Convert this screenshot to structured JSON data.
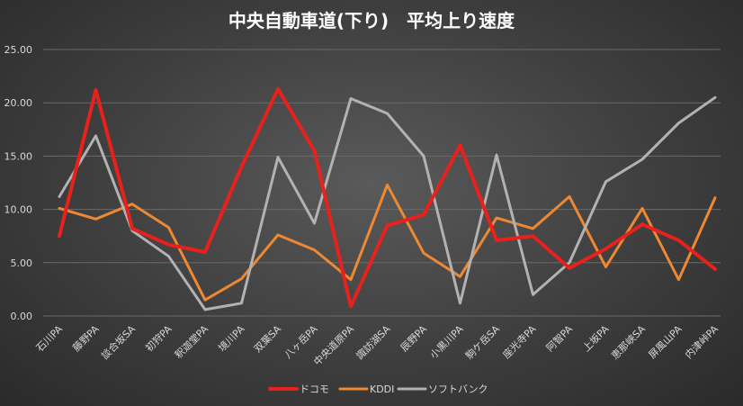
{
  "chart_data": {
    "type": "line",
    "title": "中央自動車道(下り)　平均上り速度",
    "categories": [
      "石川PA",
      "藤野PA",
      "談合坂SA",
      "初狩PA",
      "釈迦堂PA",
      "境川PA",
      "双葉SA",
      "八ヶ岳PA",
      "中央道原PA",
      "諏訪湖SA",
      "辰野PA",
      "小黒川PA",
      "駒ケ岳SA",
      "座光寺PA",
      "阿智PA",
      "上坂PA",
      "恵那峡SA",
      "屏風山PA",
      "内津峠PA"
    ],
    "ylim": [
      0,
      25
    ],
    "yticks": [
      "0.00",
      "5.00",
      "10.00",
      "15.00",
      "20.00",
      "25.00"
    ],
    "grid": true,
    "legend_position": "bottom",
    "series": [
      {
        "name": "ドコモ",
        "color": "#e8211c",
        "values": [
          7.5,
          21.2,
          8.2,
          6.7,
          6.0,
          14.0,
          21.3,
          15.5,
          0.9,
          8.5,
          9.5,
          16.0,
          7.1,
          7.5,
          4.5,
          6.3,
          8.6,
          7.1,
          4.4
        ]
      },
      {
        "name": "KDDI",
        "color": "#ee8833",
        "values": [
          10.1,
          9.1,
          10.5,
          8.3,
          1.5,
          3.5,
          7.6,
          6.2,
          3.4,
          12.3,
          5.9,
          3.7,
          9.2,
          8.2,
          11.2,
          4.6,
          10.1,
          3.4,
          11.1
        ]
      },
      {
        "name": "ソフトバンク",
        "color": "#b2b2b2",
        "values": [
          11.2,
          16.9,
          8.0,
          5.6,
          0.6,
          1.2,
          14.9,
          8.7,
          20.4,
          19.0,
          15.0,
          1.2,
          15.1,
          2.0,
          5.0,
          12.6,
          14.7,
          18.1,
          20.5
        ]
      }
    ]
  }
}
